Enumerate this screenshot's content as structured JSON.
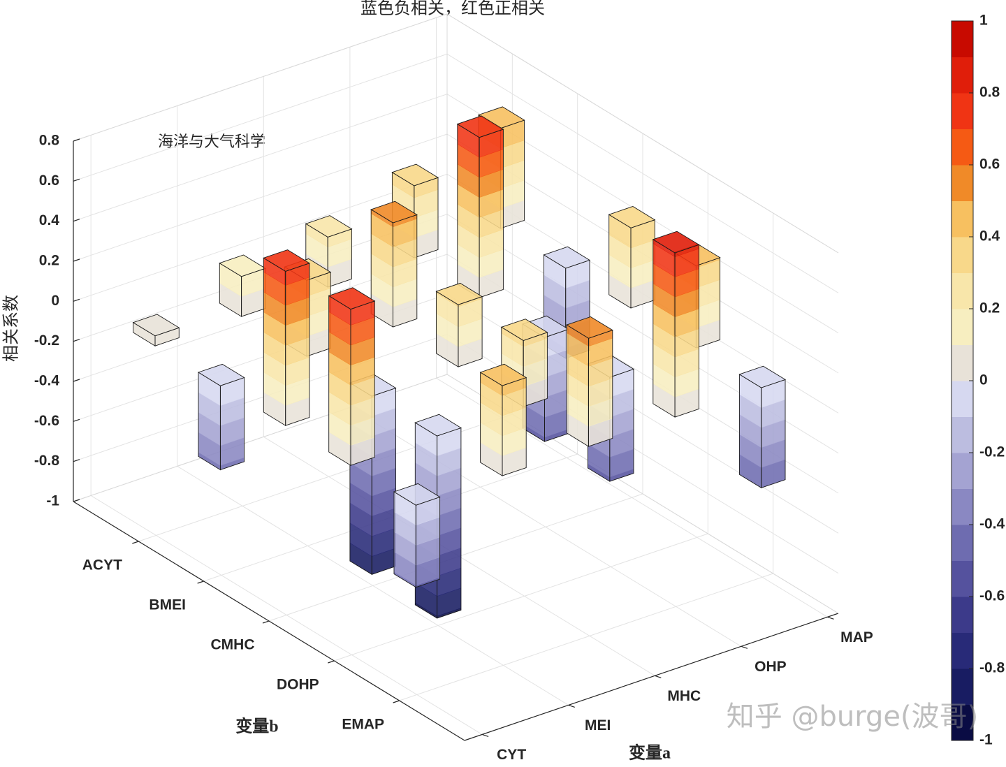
{
  "chart_data": {
    "type": "bar3d",
    "title": "蓝色负相关，红色正相关",
    "annotation": "海洋与大气科学",
    "watermark": "知乎 @burge(波哥)",
    "xlabel": "变量a",
    "ylabel": "变量b",
    "zlabel": "相关系数",
    "x": [
      "CYT",
      "MEI",
      "MHC",
      "OHP",
      "MAP"
    ],
    "y": [
      "ACYT",
      "BMEI",
      "CMHC",
      "DOHP",
      "EMAP"
    ],
    "values": [
      [
        0.05,
        -0.42,
        0.77,
        0.78,
        -0.41
      ],
      [
        0.2,
        0.38,
        -0.89,
        -0.91,
        0.45
      ],
      [
        0.25,
        0.52,
        0.31,
        0.33,
        0.54
      ],
      [
        0.36,
        0.8,
        -0.52,
        -0.52,
        0.82
      ],
      [
        0.5,
        -0.45,
        0.4,
        0.41,
        -0.5
      ]
    ],
    "zlim": [
      -1,
      0.8
    ],
    "zticks": [
      -1,
      -0.8,
      -0.6,
      -0.4,
      -0.2,
      0,
      0.2,
      0.4,
      0.6,
      0.8
    ],
    "grid": true,
    "clim": [
      -1,
      1
    ],
    "cticks": [
      -1,
      -0.8,
      -0.6,
      -0.4,
      -0.2,
      0,
      0.2,
      0.4,
      0.6,
      0.8,
      1
    ],
    "colormap": [
      "#0a0c44",
      "#181c62",
      "#282a78",
      "#3c3a8a",
      "#55529e",
      "#6e6cb0",
      "#8a88c2",
      "#a4a3d2",
      "#bcbde0",
      "#d6d8f0",
      "#e8e2d8",
      "#f7eec0",
      "#f8e6aa",
      "#f8d88a",
      "#f7c060",
      "#f08a28",
      "#f55a14",
      "#f03414",
      "#e01e0a",
      "#c80a00"
    ]
  }
}
